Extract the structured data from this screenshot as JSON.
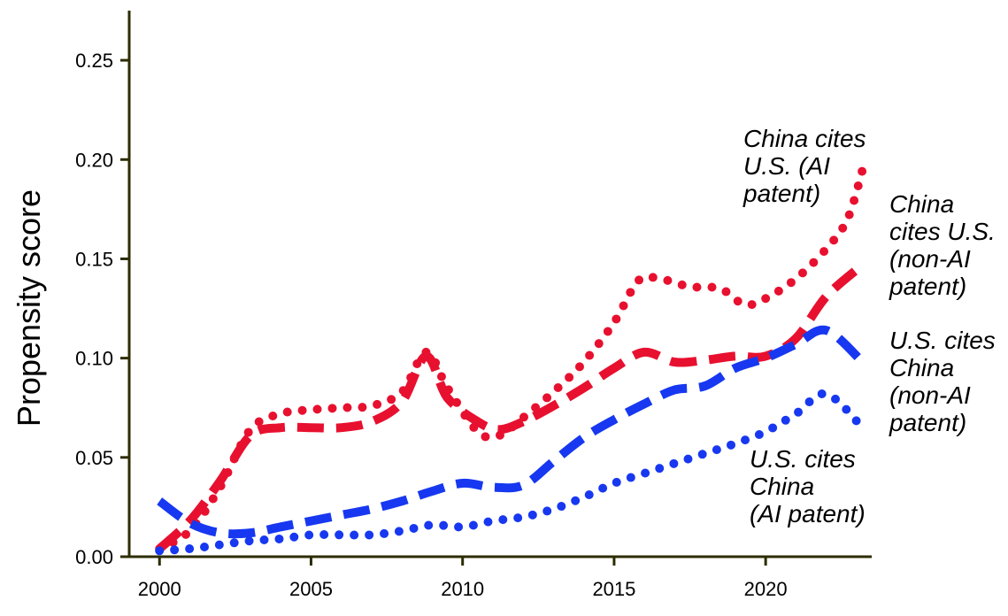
{
  "chart_data": {
    "type": "line",
    "ylabel": "Propensity score",
    "xlabel": "",
    "xlim": [
      1999,
      2023.5
    ],
    "ylim": [
      0,
      0.275
    ],
    "x_ticks": [
      "2000",
      "2005",
      "2010",
      "2015",
      "2020"
    ],
    "y_ticks": [
      "0.00",
      "0.05",
      "0.10",
      "0.15",
      "0.20",
      "0.25"
    ],
    "grid": false,
    "legend": "none",
    "series": [
      {
        "name": "China cites U.S. (AI patent)",
        "color": "#e8102f",
        "style": "dotted",
        "x": [
          2000,
          2001,
          2002,
          2003,
          2004,
          2005,
          2006,
          2007,
          2008,
          2008.8,
          2009.5,
          2010.5,
          2011.2,
          2012,
          2013,
          2014,
          2015,
          2015.8,
          2016.5,
          2017.5,
          2018.5,
          2019.3,
          2020,
          2021,
          2022,
          2022.7,
          2023.2
        ],
        "y": [
          0.004,
          0.013,
          0.035,
          0.064,
          0.072,
          0.074,
          0.075,
          0.076,
          0.083,
          0.103,
          0.085,
          0.063,
          0.061,
          0.07,
          0.083,
          0.098,
          0.118,
          0.139,
          0.14,
          0.136,
          0.135,
          0.127,
          0.13,
          0.14,
          0.155,
          0.17,
          0.195
        ]
      },
      {
        "name": "China cites U.S. (non-AI patent)",
        "color": "#e8102f",
        "style": "dashed",
        "x": [
          2000,
          2001,
          2002,
          2003,
          2004,
          2005,
          2006,
          2007,
          2008,
          2008.8,
          2009.5,
          2010.5,
          2011.2,
          2012,
          2013,
          2014,
          2015,
          2016,
          2017,
          2018,
          2019,
          2020,
          2021,
          2022,
          2023.2
        ],
        "y": [
          0.004,
          0.018,
          0.038,
          0.061,
          0.065,
          0.065,
          0.065,
          0.068,
          0.078,
          0.101,
          0.08,
          0.068,
          0.064,
          0.068,
          0.076,
          0.085,
          0.095,
          0.103,
          0.098,
          0.099,
          0.101,
          0.101,
          0.11,
          0.131,
          0.147
        ]
      },
      {
        "name": "U.S. cites China (non-AI patent)",
        "color": "#1738f0",
        "style": "dashed",
        "x": [
          2000,
          2001,
          2002,
          2003,
          2004,
          2005,
          2006,
          2007,
          2008,
          2009,
          2010,
          2011,
          2012,
          2013,
          2014,
          2015,
          2016,
          2017,
          2018,
          2019,
          2020,
          2021,
          2022,
          2023.2
        ],
        "y": [
          0.028,
          0.017,
          0.012,
          0.012,
          0.015,
          0.018,
          0.021,
          0.024,
          0.028,
          0.033,
          0.037,
          0.035,
          0.036,
          0.048,
          0.06,
          0.069,
          0.077,
          0.084,
          0.086,
          0.095,
          0.1,
          0.107,
          0.114,
          0.098
        ]
      },
      {
        "name": "U.S. cites China (AI patent)",
        "color": "#1738f0",
        "style": "dotted",
        "x": [
          2000,
          2001,
          2002,
          2003,
          2004,
          2005,
          2006,
          2007,
          2008,
          2009,
          2010,
          2011,
          2012,
          2013,
          2014,
          2015,
          2016,
          2017,
          2018,
          2019,
          2020,
          2021,
          2022,
          2023.2
        ],
        "y": [
          0.003,
          0.004,
          0.006,
          0.008,
          0.009,
          0.011,
          0.011,
          0.011,
          0.013,
          0.016,
          0.015,
          0.018,
          0.02,
          0.024,
          0.03,
          0.037,
          0.042,
          0.047,
          0.052,
          0.057,
          0.063,
          0.072,
          0.082,
          0.065
        ]
      }
    ],
    "annotations": [
      {
        "lines": [
          "China cites",
          "U.S. (AI",
          "patent)"
        ]
      },
      {
        "lines": [
          "China",
          "cites U.S.",
          "(non-AI",
          "patent)"
        ]
      },
      {
        "lines": [
          "U.S. cites",
          "China",
          "(non-AI",
          "patent)"
        ]
      },
      {
        "lines": [
          "U.S. cites",
          "China",
          "(AI patent)"
        ]
      }
    ]
  }
}
